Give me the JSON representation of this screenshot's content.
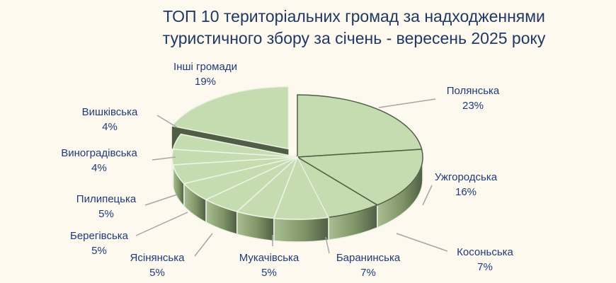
{
  "chart_data": {
    "type": "pie",
    "style": "3d-exploded",
    "title_line1": "ТОП 10 територіальних громад за надходженнями",
    "title_line2": "туристичного збору  за січень - вересень 2025 року",
    "start": "top-clockwise",
    "slices": [
      {
        "label": "Полянська",
        "value": 23,
        "pct": "23%"
      },
      {
        "label": "Ужгородська",
        "value": 16,
        "pct": "16%"
      },
      {
        "label": "Косоньська",
        "value": 7,
        "pct": "7%"
      },
      {
        "label": "Баранинська",
        "value": 7,
        "pct": "7%"
      },
      {
        "label": "Мукачівська",
        "value": 5,
        "pct": "5%"
      },
      {
        "label": "Ясінянська",
        "value": 5,
        "pct": "5%"
      },
      {
        "label": "Берегівська",
        "value": 5,
        "pct": "5%"
      },
      {
        "label": "Пилипецька",
        "value": 5,
        "pct": "5%"
      },
      {
        "label": "Виноградівська",
        "value": 4,
        "pct": "4%"
      },
      {
        "label": "Вишківська",
        "value": 4,
        "pct": "4%"
      },
      {
        "label": "Інші громади",
        "value": 19,
        "pct": "19%",
        "exploded": true
      }
    ],
    "colors": {
      "top": "#c5dcb0",
      "side_dark": "#4f5e45",
      "side_light": "#a9bf93",
      "label": "#1f3a7a",
      "leader": "#a6a6a6"
    }
  }
}
